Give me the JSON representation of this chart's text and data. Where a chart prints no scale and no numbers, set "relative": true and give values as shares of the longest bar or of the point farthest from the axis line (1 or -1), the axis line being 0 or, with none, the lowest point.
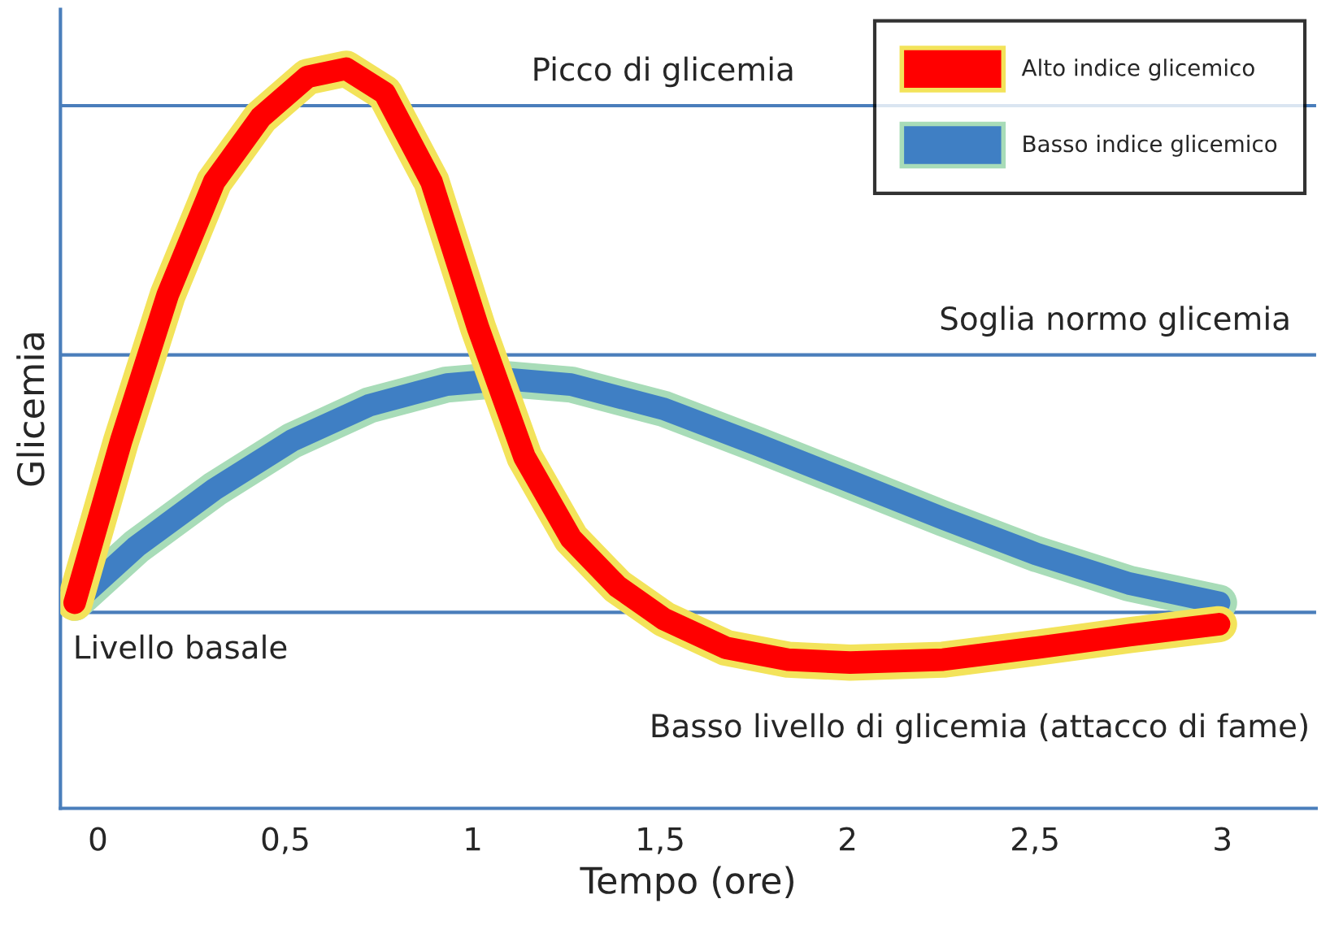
{
  "chart_data": {
    "type": "line",
    "relative": true,
    "xlabel": "Tempo (ore)",
    "ylabel": "Glicemia",
    "xlim": [
      -0.1,
      3.25
    ],
    "xticks": [
      0,
      {
        "value": 0.5,
        "label": "0,5"
      },
      1,
      {
        "value": 1.5,
        "label": "1,5"
      },
      2,
      {
        "value": 2.5,
        "label": "2,5"
      },
      3
    ],
    "series": [
      {
        "name": "Alto indice glicemico",
        "color": "#ff0000",
        "x": [
          -0.062,
          0.062,
          0.186,
          0.31,
          0.434,
          0.559,
          0.662,
          0.765,
          0.89,
          1.014,
          1.138,
          1.262,
          1.386,
          1.51,
          1.676,
          1.841,
          2.007,
          2.255,
          2.503,
          2.751,
          2.991
        ],
        "values": [
          0.278,
          0.497,
          0.694,
          0.847,
          0.934,
          0.989,
          1.0,
          0.967,
          0.847,
          0.65,
          0.475,
          0.365,
          0.3,
          0.256,
          0.217,
          0.201,
          0.197,
          0.201,
          0.217,
          0.234,
          0.249
        ]
      },
      {
        "name": "Basso indice glicemico",
        "color": "#3f7fc4",
        "x": [
          -0.062,
          0.103,
          0.31,
          0.517,
          0.724,
          0.931,
          1.096,
          1.262,
          1.51,
          1.758,
          2.007,
          2.255,
          2.503,
          2.751,
          2.991
        ],
        "values": [
          0.278,
          0.354,
          0.431,
          0.497,
          0.545,
          0.573,
          0.58,
          0.573,
          0.54,
          0.492,
          0.442,
          0.392,
          0.344,
          0.304,
          0.278
        ]
      }
    ],
    "ref_lines": [
      {
        "axis": "y",
        "value": 0.95,
        "label": "Picco di glicemia",
        "color": "#4a7ebb"
      },
      {
        "axis": "y",
        "value": 0.613,
        "label": "Soglia normo glicemia",
        "color": "#4a7ebb"
      },
      {
        "axis": "y",
        "value": 0.265,
        "label": "Livello basale",
        "color": "#4a7ebb"
      }
    ],
    "annotations": [
      "Basso livello di glicemia (attacco di fame)"
    ],
    "legend": "top right",
    "grid": false,
    "line_style": "solid",
    "marker": "none"
  }
}
